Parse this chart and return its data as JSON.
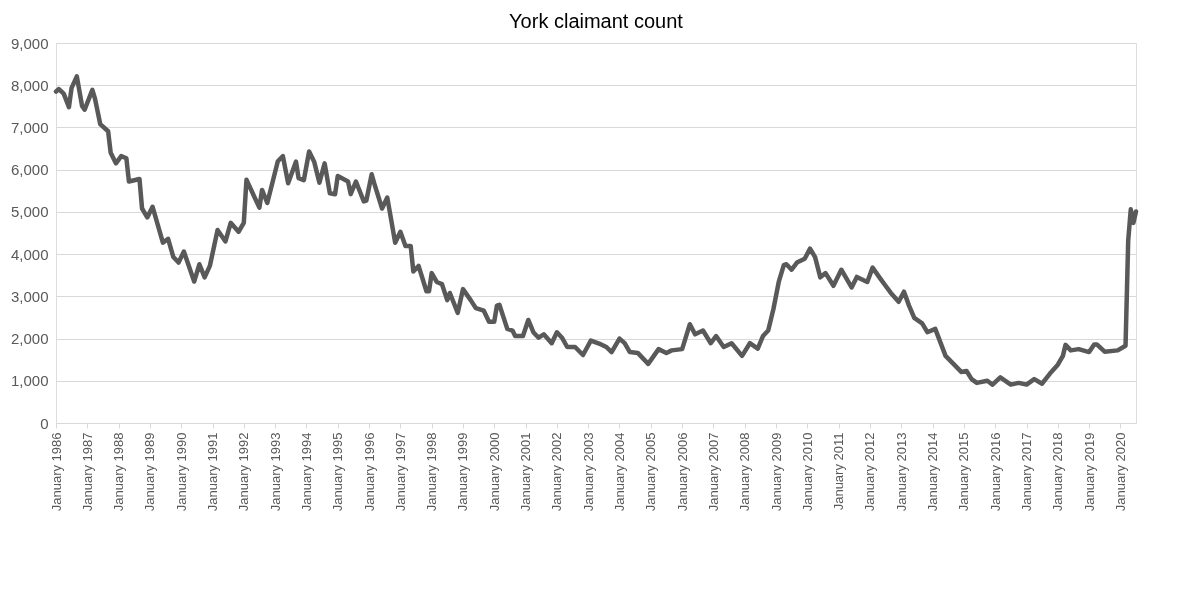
{
  "chart_data": {
    "type": "line",
    "title": "York claimant count",
    "x": [
      "1986-01",
      "1986-02",
      "1986-04",
      "1986-06",
      "1986-07",
      "1986-09",
      "1986-11",
      "1986-12",
      "1987-03",
      "1987-04",
      "1987-06",
      "1987-09",
      "1987-10",
      "1987-12",
      "1988-02",
      "1988-04",
      "1988-05",
      "1988-09",
      "1988-10",
      "1988-12",
      "1989-02",
      "1989-06",
      "1989-08",
      "1989-10",
      "1989-12",
      "1990-02",
      "1990-06",
      "1990-08",
      "1990-10",
      "1990-12",
      "1991-03",
      "1991-06",
      "1991-08",
      "1991-11",
      "1992-01",
      "1992-02",
      "1992-07",
      "1992-08",
      "1992-10",
      "1993-02",
      "1993-04",
      "1993-06",
      "1993-09",
      "1993-10",
      "1993-12",
      "1994-02",
      "1994-04",
      "1994-06",
      "1994-08",
      "1994-10",
      "1994-12",
      "1995-01",
      "1995-05",
      "1995-06",
      "1995-08",
      "1995-11",
      "1995-12",
      "1996-02",
      "1996-03",
      "1996-06",
      "1996-08",
      "1996-11",
      "1997-01",
      "1997-03",
      "1997-05",
      "1997-06",
      "1997-08",
      "1997-11",
      "1997-12",
      "1998-01",
      "1998-03",
      "1998-05",
      "1998-07",
      "1998-08",
      "1998-11",
      "1999-01",
      "1999-04",
      "1999-06",
      "1999-09",
      "1999-11",
      "2000-01",
      "2000-02",
      "2000-03",
      "2000-06",
      "2000-08",
      "2000-09",
      "2000-12",
      "2001-02",
      "2001-04",
      "2001-06",
      "2001-08",
      "2001-11",
      "2002-01",
      "2002-03",
      "2002-05",
      "2002-08",
      "2002-11",
      "2003-02",
      "2003-06",
      "2003-08",
      "2003-10",
      "2004-01",
      "2004-03",
      "2004-05",
      "2004-08",
      "2004-12",
      "2005-04",
      "2005-07",
      "2005-09",
      "2006-01",
      "2006-04",
      "2006-06",
      "2006-09",
      "2006-12",
      "2007-02",
      "2007-05",
      "2007-08",
      "2007-12",
      "2008-03",
      "2008-06",
      "2008-08",
      "2008-10",
      "2008-12",
      "2009-02",
      "2009-04",
      "2009-05",
      "2009-07",
      "2009-09",
      "2009-12",
      "2010-02",
      "2010-04",
      "2010-06",
      "2010-08",
      "2010-11",
      "2011-02",
      "2011-06",
      "2011-08",
      "2011-12",
      "2012-02",
      "2012-05",
      "2012-07",
      "2012-09",
      "2012-12",
      "2013-02",
      "2013-04",
      "2013-06",
      "2013-09",
      "2013-11",
      "2014-02",
      "2014-06",
      "2014-09",
      "2014-12",
      "2015-02",
      "2015-04",
      "2015-06",
      "2015-10",
      "2015-12",
      "2016-03",
      "2016-07",
      "2016-10",
      "2017-01",
      "2017-04",
      "2017-07",
      "2017-10",
      "2018-01",
      "2018-03",
      "2018-04",
      "2018-06",
      "2018-09",
      "2019-01",
      "2019-03",
      "2019-04",
      "2019-07",
      "2019-12",
      "2020-03",
      "2020-04",
      "2020-05",
      "2020-06",
      "2020-07"
    ],
    "series": [
      {
        "color": "#595959",
        "values": [
          7850,
          7910,
          7800,
          7480,
          7930,
          8210,
          7510,
          7420,
          7890,
          7680,
          7080,
          6910,
          6400,
          6150,
          6320,
          6270,
          5720,
          5780,
          5080,
          4870,
          5120,
          4270,
          4360,
          3930,
          3800,
          4060,
          3350,
          3760,
          3450,
          3720,
          4570,
          4300,
          4740,
          4530,
          4740,
          5760,
          5100,
          5520,
          5210,
          6200,
          6320,
          5680,
          6190,
          5800,
          5750,
          6430,
          6190,
          5690,
          6150,
          5440,
          5420,
          5850,
          5720,
          5420,
          5720,
          5250,
          5270,
          5890,
          5680,
          5080,
          5340,
          4270,
          4530,
          4190,
          4190,
          3590,
          3720,
          3120,
          3120,
          3550,
          3340,
          3290,
          2910,
          3080,
          2610,
          3170,
          2910,
          2720,
          2660,
          2400,
          2400,
          2780,
          2800,
          2230,
          2190,
          2060,
          2060,
          2440,
          2150,
          2020,
          2100,
          1890,
          2150,
          2020,
          1800,
          1800,
          1610,
          1950,
          1860,
          1800,
          1680,
          2000,
          1890,
          1680,
          1660,
          1400,
          1750,
          1660,
          1720,
          1750,
          2340,
          2100,
          2190,
          1890,
          2060,
          1800,
          1890,
          1590,
          1890,
          1760,
          2060,
          2190,
          2700,
          3340,
          3740,
          3760,
          3630,
          3800,
          3890,
          4130,
          3930,
          3450,
          3550,
          3250,
          3630,
          3210,
          3460,
          3340,
          3680,
          3420,
          3250,
          3080,
          2870,
          3110,
          2780,
          2490,
          2360,
          2150,
          2230,
          1590,
          1400,
          1210,
          1230,
          1040,
          950,
          1000,
          910,
          1080,
          910,
          950,
          910,
          1040,
          930,
          1170,
          1380,
          1590,
          1850,
          1720,
          1750,
          1680,
          1860,
          1860,
          1690,
          1720,
          1830,
          4320,
          5060,
          4740,
          5010
        ]
      }
    ],
    "xlim": [
      "1986-01",
      "2020-07"
    ],
    "xticks": [
      {
        "value": "1986-01",
        "label": "January 1986"
      },
      {
        "value": "1987-01",
        "label": "January 1987"
      },
      {
        "value": "1988-01",
        "label": "January 1988"
      },
      {
        "value": "1989-01",
        "label": "January 1989"
      },
      {
        "value": "1990-01",
        "label": "January 1990"
      },
      {
        "value": "1991-01",
        "label": "January 1991"
      },
      {
        "value": "1992-01",
        "label": "January 1992"
      },
      {
        "value": "1993-01",
        "label": "January 1993"
      },
      {
        "value": "1994-01",
        "label": "January 1994"
      },
      {
        "value": "1995-01",
        "label": "January 1995"
      },
      {
        "value": "1996-01",
        "label": "January 1996"
      },
      {
        "value": "1997-01",
        "label": "January 1997"
      },
      {
        "value": "1998-01",
        "label": "January 1998"
      },
      {
        "value": "1999-01",
        "label": "January 1999"
      },
      {
        "value": "2000-01",
        "label": "January 2000"
      },
      {
        "value": "2001-01",
        "label": "January 2001"
      },
      {
        "value": "2002-01",
        "label": "January 2002"
      },
      {
        "value": "2003-01",
        "label": "January 2003"
      },
      {
        "value": "2004-01",
        "label": "January 2004"
      },
      {
        "value": "2005-01",
        "label": "January 2005"
      },
      {
        "value": "2006-01",
        "label": "January 2006"
      },
      {
        "value": "2007-01",
        "label": "January 2007"
      },
      {
        "value": "2008-01",
        "label": "January 2008"
      },
      {
        "value": "2009-01",
        "label": "January 2009"
      },
      {
        "value": "2010-01",
        "label": "January 2010"
      },
      {
        "value": "2011-01",
        "label": "January 2011"
      },
      {
        "value": "2012-01",
        "label": "January 2012"
      },
      {
        "value": "2013-01",
        "label": "January 2013"
      },
      {
        "value": "2014-01",
        "label": "January 2014"
      },
      {
        "value": "2015-01",
        "label": "January 2015"
      },
      {
        "value": "2016-01",
        "label": "January 2016"
      },
      {
        "value": "2017-01",
        "label": "January 2017"
      },
      {
        "value": "2018-01",
        "label": "January 2018"
      },
      {
        "value": "2019-01",
        "label": "January 2019"
      },
      {
        "value": "2020-01",
        "label": "January 2020"
      }
    ],
    "ylim": [
      0,
      9000
    ],
    "yticks": [
      0,
      {
        "value": 1000,
        "label": "1,000"
      },
      {
        "value": 2000,
        "label": "2,000"
      },
      {
        "value": 3000,
        "label": "3,000"
      },
      {
        "value": 4000,
        "label": "4,000"
      },
      {
        "value": 5000,
        "label": "5,000"
      },
      {
        "value": 6000,
        "label": "6,000"
      },
      {
        "value": 7000,
        "label": "7,000"
      },
      {
        "value": 8000,
        "label": "8,000"
      },
      {
        "value": 9000,
        "label": "9,000"
      }
    ],
    "grid": "y",
    "legend": false,
    "line_style": "solid",
    "marker": "none"
  }
}
